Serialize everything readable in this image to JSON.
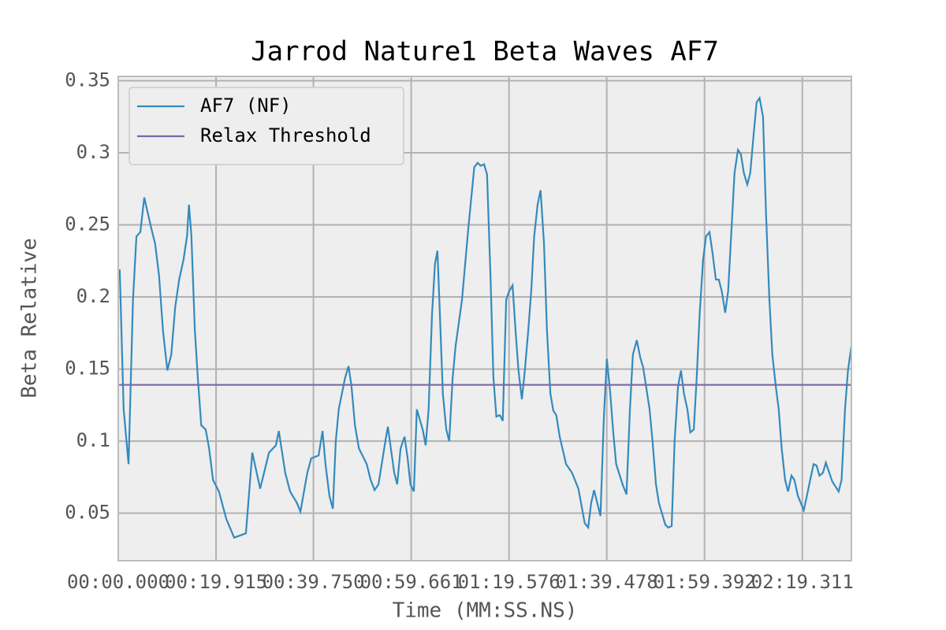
{
  "chart_data": {
    "type": "line",
    "title": "Jarrod Nature1 Beta Waves AF7",
    "xlabel": "Time (MM:SS.NS)",
    "ylabel": "Beta Relative",
    "x": [
      0.3,
      1.1,
      2.1,
      3.0,
      3.7,
      4.5,
      5.3,
      6.7,
      7.5,
      8.3,
      9.1,
      10.0,
      10.8,
      11.6,
      12.4,
      13.3,
      14.0,
      14.4,
      14.9,
      15.6,
      16.2,
      16.9,
      17.8,
      18.5,
      19.3,
      20.5,
      22.0,
      23.6,
      25.2,
      26.0,
      26.6,
      27.3,
      28.9,
      30.7,
      32.1,
      32.7,
      34.0,
      35.0,
      36.4,
      37.1,
      38.5,
      39.3,
      40.8,
      41.6,
      42.2,
      43.0,
      43.7,
      44.3,
      44.9,
      46.2,
      46.9,
      47.5,
      48.2,
      49.0,
      50.6,
      51.4,
      52.2,
      53.0,
      54.4,
      54.9,
      56.2,
      56.8,
      57.5,
      58.3,
      58.9,
      59.5,
      60.2,
      60.8,
      62.0,
      62.6,
      63.2,
      63.9,
      64.5,
      65.0,
      65.5,
      66.1,
      66.8,
      67.4,
      68.1,
      68.7,
      70.0,
      71.3,
      72.5,
      73.2,
      73.8,
      74.5,
      75.1,
      75.8,
      76.4,
      77.0,
      77.7,
      78.3,
      79.0,
      79.6,
      80.3,
      80.9,
      81.5,
      82.2,
      82.8,
      83.5,
      84.1,
      84.7,
      85.4,
      86.0,
      86.7,
      87.3,
      88.0,
      88.6,
      89.2,
      89.9,
      91.2,
      92.4,
      93.7,
      95.0,
      95.7,
      96.3,
      96.9,
      98.2,
      98.9,
      99.5,
      100.2,
      100.8,
      101.4,
      102.7,
      103.5,
      104.2,
      104.8,
      105.6,
      106.3,
      106.9,
      108.2,
      108.8,
      109.5,
      110.1,
      111.4,
      112.0,
      112.7,
      113.3,
      114.0,
      114.6,
      115.2,
      115.9,
      116.5,
      117.2,
      117.8,
      118.4,
      119.1,
      119.7,
      120.4,
      121.0,
      121.7,
      122.3,
      122.9,
      123.6,
      124.2,
      124.9,
      125.5,
      126.2,
      126.8,
      127.4,
      128.1,
      128.7,
      129.4,
      130.0,
      130.6,
      131.3,
      131.9,
      132.6,
      133.2,
      133.9,
      134.5,
      135.1,
      135.8,
      136.4,
      137.1,
      137.7,
      138.4,
      139.6,
      140.3,
      140.9,
      141.6,
      142.2,
      142.8,
      143.5,
      144.1,
      144.8,
      145.4,
      146.7,
      147.3,
      148.0,
      148.6,
      149.3
    ],
    "series": [
      {
        "name": "AF7 (NF)",
        "color": "#348abd",
        "values": [
          0.219,
          0.122,
          0.084,
          0.198,
          0.242,
          0.245,
          0.269,
          0.248,
          0.237,
          0.215,
          0.177,
          0.149,
          0.16,
          0.193,
          0.212,
          0.226,
          0.242,
          0.264,
          0.242,
          0.177,
          0.144,
          0.111,
          0.108,
          0.095,
          0.073,
          0.065,
          0.046,
          0.033,
          0.035,
          0.036,
          0.062,
          0.092,
          0.067,
          0.092,
          0.097,
          0.107,
          0.078,
          0.065,
          0.057,
          0.051,
          0.078,
          0.088,
          0.09,
          0.107,
          0.084,
          0.062,
          0.053,
          0.1,
          0.122,
          0.144,
          0.152,
          0.138,
          0.111,
          0.095,
          0.084,
          0.073,
          0.066,
          0.07,
          0.1,
          0.11,
          0.078,
          0.07,
          0.095,
          0.103,
          0.089,
          0.07,
          0.065,
          0.122,
          0.108,
          0.097,
          0.122,
          0.188,
          0.223,
          0.232,
          0.188,
          0.133,
          0.108,
          0.1,
          0.144,
          0.166,
          0.198,
          0.248,
          0.29,
          0.293,
          0.291,
          0.292,
          0.285,
          0.215,
          0.144,
          0.117,
          0.118,
          0.114,
          0.198,
          0.204,
          0.208,
          0.177,
          0.149,
          0.129,
          0.149,
          0.177,
          0.204,
          0.242,
          0.264,
          0.274,
          0.237,
          0.177,
          0.133,
          0.121,
          0.118,
          0.103,
          0.084,
          0.078,
          0.067,
          0.043,
          0.04,
          0.057,
          0.066,
          0.048,
          0.117,
          0.157,
          0.133,
          0.106,
          0.084,
          0.07,
          0.063,
          0.122,
          0.16,
          0.17,
          0.158,
          0.151,
          0.122,
          0.1,
          0.07,
          0.057,
          0.042,
          0.04,
          0.041,
          0.1,
          0.138,
          0.149,
          0.133,
          0.122,
          0.106,
          0.108,
          0.144,
          0.188,
          0.226,
          0.242,
          0.245,
          0.231,
          0.212,
          0.212,
          0.204,
          0.189,
          0.204,
          0.248,
          0.286,
          0.302,
          0.299,
          0.286,
          0.278,
          0.286,
          0.313,
          0.335,
          0.338,
          0.325,
          0.259,
          0.198,
          0.16,
          0.138,
          0.122,
          0.095,
          0.073,
          0.065,
          0.076,
          0.073,
          0.062,
          0.052,
          0.063,
          0.073,
          0.084,
          0.083,
          0.076,
          0.078,
          0.085,
          0.078,
          0.072,
          0.065,
          0.073,
          0.122,
          0.149,
          0.166
        ]
      }
    ],
    "hlines": [
      {
        "name": "Relax Threshold",
        "color": "#7a68a6",
        "value": 0.139
      }
    ],
    "xlim": [
      0,
      149.3
    ],
    "xticks": [
      {
        "value": 0,
        "label": "00:00.000"
      },
      {
        "value": 19.915,
        "label": "00:19.915"
      },
      {
        "value": 39.75,
        "label": "00:39.750"
      },
      {
        "value": 59.661,
        "label": "00:59.661"
      },
      {
        "value": 79.576,
        "label": "01:19.576"
      },
      {
        "value": 99.478,
        "label": "01:39.478"
      },
      {
        "value": 119.392,
        "label": "01:59.392"
      },
      {
        "value": 139.311,
        "label": "02:19.311"
      }
    ],
    "ylim": [
      0.017,
      0.353
    ],
    "yticks": [
      0.05,
      0.1,
      0.15,
      0.2,
      0.25,
      0.3,
      0.35
    ],
    "grid": true,
    "legend": "upper left"
  }
}
